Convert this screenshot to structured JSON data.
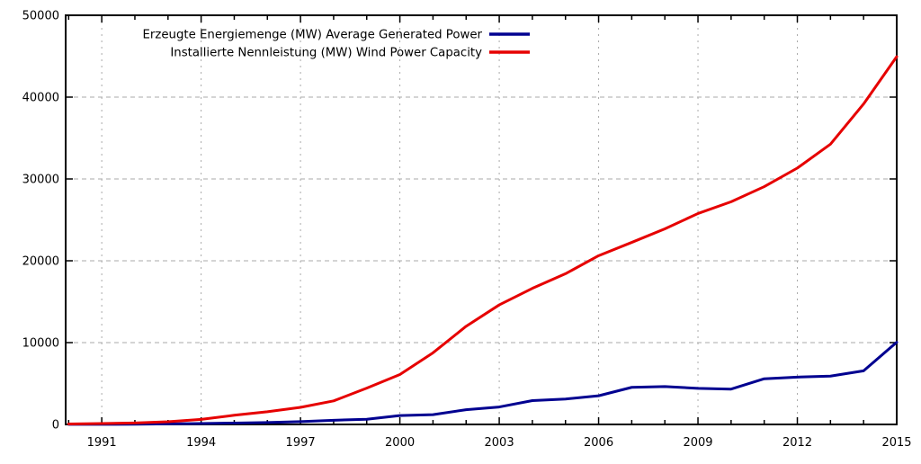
{
  "chart_data": {
    "type": "line",
    "title": "",
    "xlabel": "",
    "ylabel": "",
    "x": [
      1990,
      1991,
      1992,
      1993,
      1994,
      1995,
      1996,
      1997,
      1998,
      1999,
      2000,
      2001,
      2002,
      2003,
      2004,
      2005,
      2006,
      2007,
      2008,
      2009,
      2010,
      2011,
      2012,
      2013,
      2014,
      2015
    ],
    "series": [
      {
        "name": "Erzeugte Energiemenge (MW) Average Generated Power",
        "color": "#000090",
        "values": [
          8,
          12,
          32,
          68,
          104,
          171,
          232,
          340,
          512,
          631,
          1084,
          1199,
          1804,
          2135,
          2911,
          3106,
          3504,
          4532,
          4635,
          4406,
          4315,
          5582,
          5788,
          5902,
          6553,
          10046
        ]
      },
      {
        "name": "Installierte Nennleistung (MW) Wind Power Capacity",
        "color": "#e60000",
        "values": [
          55,
          106,
          174,
          326,
          618,
          1121,
          1549,
          2089,
          2877,
          4435,
          6097,
          8754,
          11994,
          14609,
          16629,
          18415,
          20622,
          22247,
          23903,
          25777,
          27214,
          29060,
          31332,
          34250,
          39165,
          44941
        ]
      }
    ],
    "xlim": [
      1989.91,
      2015
    ],
    "ylim": [
      0,
      50000
    ],
    "x_major_ticks": [
      1991,
      1994,
      1997,
      2000,
      2003,
      2006,
      2009,
      2012,
      2015
    ],
    "x_minor_step": 1,
    "y_major_ticks": [
      0,
      10000,
      20000,
      30000,
      40000,
      50000
    ],
    "grid": true,
    "legend_position": "top-center",
    "colors": {
      "background": "#ffffff",
      "axis": "#000000",
      "grid": "#aaaaaa",
      "text": "#000000"
    }
  }
}
